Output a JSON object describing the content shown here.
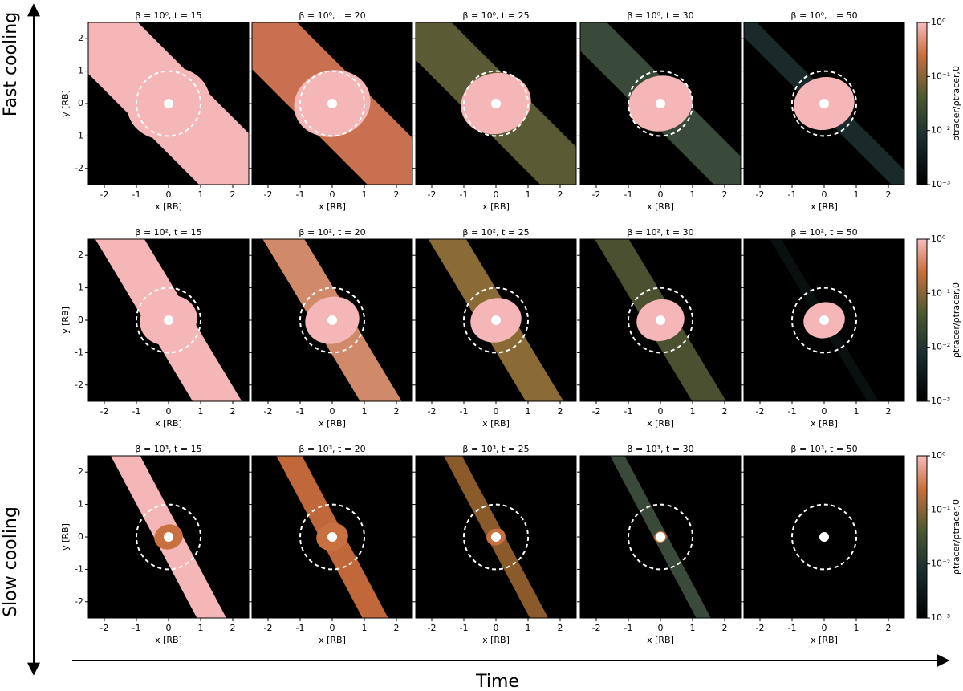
{
  "chart_data": {
    "type": "image-grid",
    "xlabel": "x [RB]",
    "ylabel": "y [RB]",
    "xlim": [
      -2.5,
      2.5
    ],
    "ylim": [
      -2.5,
      2.5
    ],
    "xticks": [
      -2,
      -1,
      0,
      1,
      2
    ],
    "yticks": [
      -2,
      -1,
      0,
      1,
      2
    ],
    "colorbar": {
      "label": "ρtracer/ρtracer,0",
      "log": true,
      "lim": [
        0.001,
        1
      ],
      "ticks": [
        {
          "value": 1,
          "label": "10⁰"
        },
        {
          "value": 0.1,
          "label": "10⁻¹"
        },
        {
          "value": 0.01,
          "label": "10⁻²"
        },
        {
          "value": 0.001,
          "label": "10⁻³"
        }
      ]
    },
    "rows": [
      {
        "titles": [
          "β = 10⁰, t = 15",
          "β = 10⁰, t = 20",
          "β = 10⁰, t = 25",
          "β = 10⁰, t = 30",
          "β = 10⁰, t = 50"
        ]
      },
      {
        "titles": [
          "β = 10², t = 15",
          "β = 10², t = 20",
          "β = 10², t = 25",
          "β = 10², t = 30",
          "β = 10², t = 50"
        ]
      },
      {
        "titles": [
          "β = 10³, t = 15",
          "β = 10³, t = 20",
          "β = 10³, t = 25",
          "β = 10³, t = 30",
          "β = 10³, t = 50"
        ]
      }
    ],
    "annotation": "RB",
    "row_labels": {
      "top": "Fast cooling",
      "bottom": "Slow cooling"
    },
    "time_label": "Time"
  }
}
